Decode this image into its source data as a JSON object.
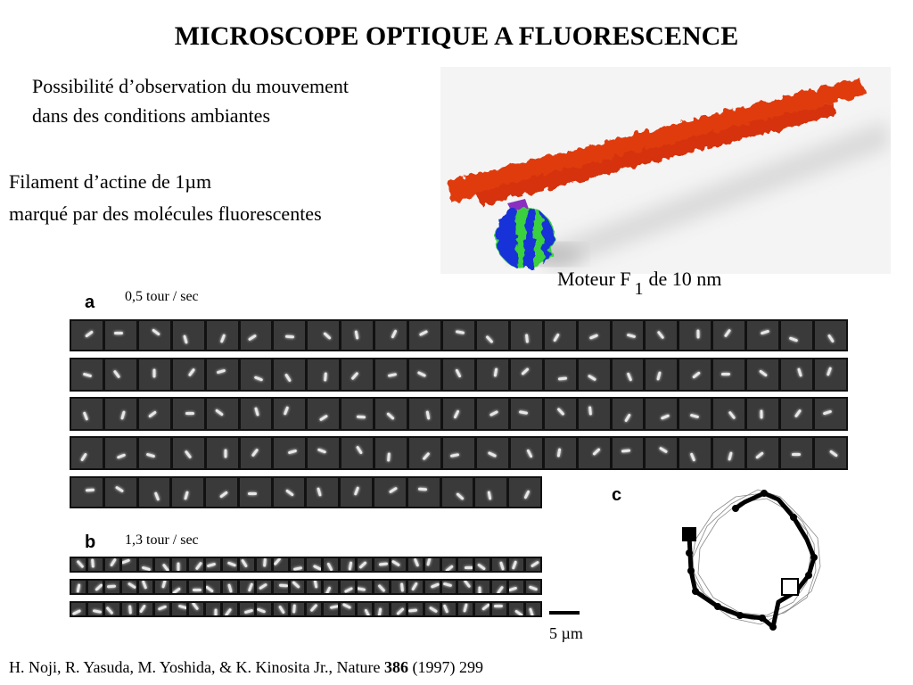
{
  "title": "MICROSCOPE OPTIQUE A FLUORESCENCE",
  "intro": {
    "line1": "Possibilité d’observation du mouvement",
    "line2": "dans des conditions ambiantes"
  },
  "filament": {
    "line1": "Filament d’actine de 1µm",
    "line2": "marqué par des molécules fluorescentes"
  },
  "motor": {
    "label_before": "Moteur F",
    "subscript": "1",
    "label_after": "de 10 nm"
  },
  "panel_a": {
    "letter": "a",
    "rate": "0,5 tour / sec"
  },
  "panel_b": {
    "letter": "b",
    "rate": "1,3 tour / sec"
  },
  "panel_c": {
    "letter": "c"
  },
  "scale_bar": "5 µm",
  "reference": {
    "before": "H. Noji, R. Yasuda, M. Yoshida, & K. Kinosita Jr., Nature ",
    "volume": "386",
    "after": " (1997) 299"
  },
  "colors": {
    "actin": "#e03a10",
    "motor_blue": "#1530d8",
    "motor_green": "#3ad040",
    "linker": "#8a30c0"
  }
}
